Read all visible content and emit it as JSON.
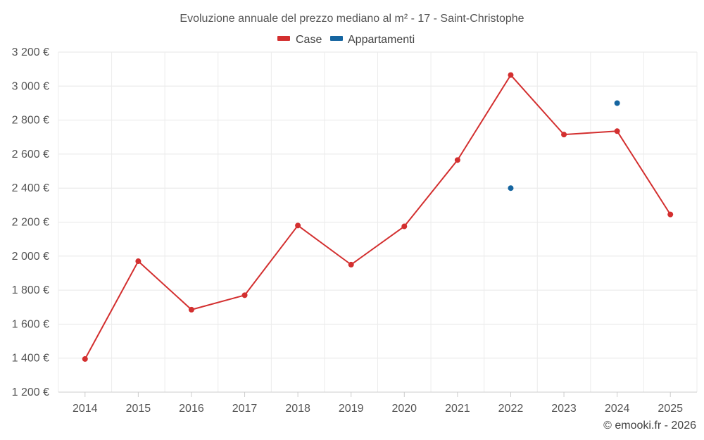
{
  "chart_data": {
    "type": "line",
    "title": "Evoluzione annuale del prezzo mediano al m² - 17 - Saint-Christophe",
    "categories": [
      "2014",
      "2015",
      "2016",
      "2017",
      "2018",
      "2019",
      "2020",
      "2021",
      "2022",
      "2023",
      "2024",
      "2025"
    ],
    "series": [
      {
        "name": "Case",
        "color": "#d32f2f",
        "style": "line",
        "values": [
          1395,
          1970,
          1685,
          1770,
          2180,
          1950,
          2175,
          2565,
          3065,
          2715,
          2735,
          2245
        ]
      },
      {
        "name": "Appartamenti",
        "color": "#1565a0",
        "style": "points",
        "values": [
          null,
          null,
          null,
          null,
          null,
          null,
          null,
          null,
          2400,
          null,
          2900,
          null
        ]
      }
    ],
    "y_ticks": [
      1200,
      1400,
      1600,
      1800,
      2000,
      2200,
      2400,
      2600,
      2800,
      3000,
      3200
    ],
    "y_tick_labels": [
      "1 200 €",
      "1 400 €",
      "1 600 €",
      "1 800 €",
      "2 000 €",
      "2 200 €",
      "2 400 €",
      "2 600 €",
      "2 800 €",
      "3 000 €",
      "3 200 €"
    ],
    "ylim": [
      1200,
      3200
    ],
    "xlabel": "",
    "ylabel": "",
    "grid": true,
    "legend_position": "top-center",
    "credit": "© emooki.fr - 2026"
  }
}
